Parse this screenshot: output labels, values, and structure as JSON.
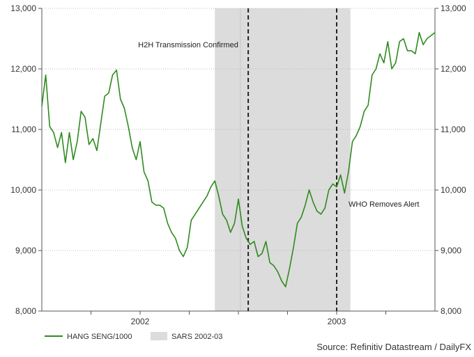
{
  "chart_data": {
    "type": "line",
    "title": "",
    "xlabel": "",
    "ylabel": "",
    "ylim": [
      8000,
      13000
    ],
    "y_ticks": [
      8000,
      9000,
      10000,
      11000,
      12000,
      13000
    ],
    "y_tick_labels": [
      "8,000",
      "9,000",
      "10,000",
      "11,000",
      "12,000",
      "13,000"
    ],
    "x_range": [
      2001.5,
      2003.5
    ],
    "x_ticks": [
      {
        "value": 2002.0,
        "label": "2002"
      },
      {
        "value": 2003.0,
        "label": "2003"
      }
    ],
    "grid": true,
    "legend_position": "bottom-left",
    "series": [
      {
        "name": "HANG SENG/1000",
        "color": "#2e8b1e",
        "x": [
          2001.5,
          2001.52,
          2001.54,
          2001.56,
          2001.58,
          2001.6,
          2001.62,
          2001.64,
          2001.66,
          2001.68,
          2001.7,
          2001.72,
          2001.74,
          2001.76,
          2001.78,
          2001.8,
          2001.82,
          2001.84,
          2001.86,
          2001.88,
          2001.9,
          2001.92,
          2001.94,
          2001.96,
          2001.98,
          2002.0,
          2002.02,
          2002.04,
          2002.06,
          2002.08,
          2002.1,
          2002.12,
          2002.14,
          2002.16,
          2002.18,
          2002.2,
          2002.22,
          2002.24,
          2002.26,
          2002.28,
          2002.3,
          2002.32,
          2002.34,
          2002.36,
          2002.38,
          2002.4,
          2002.42,
          2002.44,
          2002.46,
          2002.48,
          2002.5,
          2002.52,
          2002.54,
          2002.56,
          2002.58,
          2002.6,
          2002.62,
          2002.64,
          2002.66,
          2002.68,
          2002.7,
          2002.72,
          2002.74,
          2002.76,
          2002.78,
          2002.8,
          2002.82,
          2002.84,
          2002.86,
          2002.88,
          2002.9,
          2002.92,
          2002.94,
          2002.96,
          2002.98,
          2003.0,
          2003.02,
          2003.04,
          2003.06,
          2003.08,
          2003.1,
          2003.12,
          2003.14,
          2003.16,
          2003.18,
          2003.2,
          2003.22,
          2003.24,
          2003.26,
          2003.28,
          2003.3,
          2003.32,
          2003.34,
          2003.36,
          2003.38,
          2003.4,
          2003.42,
          2003.44,
          2003.46,
          2003.48,
          2003.5
        ],
        "values": [
          11380,
          11900,
          11050,
          10950,
          10700,
          10950,
          10450,
          10950,
          10500,
          10800,
          11300,
          11200,
          10750,
          10850,
          10650,
          11100,
          11550,
          11600,
          11900,
          11980,
          11500,
          11350,
          11050,
          10700,
          10500,
          10800,
          10300,
          10150,
          9800,
          9750,
          9750,
          9700,
          9450,
          9300,
          9200,
          9000,
          8900,
          9050,
          9500,
          9600,
          9700,
          9800,
          9900,
          10050,
          10150,
          9900,
          9600,
          9500,
          9300,
          9450,
          9850,
          9400,
          9200,
          9100,
          9150,
          8900,
          8950,
          9150,
          8800,
          8750,
          8650,
          8500,
          8400,
          8700,
          9050,
          9450,
          9550,
          9750,
          10000,
          9800,
          9650,
          9600,
          9700,
          10000,
          10100,
          10050,
          10250,
          9950,
          10300,
          10800,
          10900,
          11050,
          11300,
          11400,
          11900,
          12000,
          12250,
          12100,
          12450,
          12000,
          12100,
          12450,
          12500,
          12300,
          12300,
          12250,
          12600,
          12400,
          12500,
          12550,
          12600
        ]
      },
      {
        "name": "SARS 2002-03",
        "color": "#dcdcdc",
        "type": "span",
        "start": 2002.38,
        "end": 2003.07
      }
    ],
    "annotations": [
      {
        "text": "H2H Transmission Confirmed",
        "x": 2002.55
      },
      {
        "text": "WHO Removes Alert",
        "x": 2003.0
      }
    ],
    "source": "Source: Refinitiv Datastream / DailyFX"
  }
}
